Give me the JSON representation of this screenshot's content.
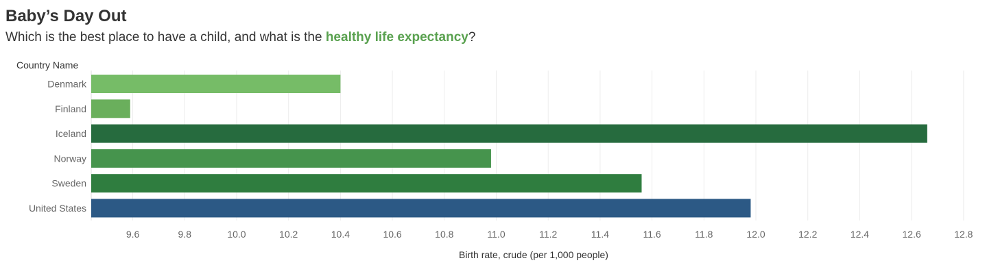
{
  "header": {
    "title": "Baby’s Day Out",
    "subtitle_prefix": "Which is the best place to have a child, and what is the ",
    "subtitle_highlight": "healthy life expectancy",
    "subtitle_suffix": "?"
  },
  "colors": {
    "highlight": "#59a14f",
    "gridline": "#ececec",
    "axis_text": "#666666"
  },
  "chart_data": {
    "type": "bar",
    "orientation": "horizontal",
    "row_header": "Country Name",
    "categories": [
      "Denmark",
      "Finland",
      "Iceland",
      "Norway",
      "Sweden",
      "United States"
    ],
    "values": [
      10.4,
      9.59,
      12.66,
      10.98,
      11.56,
      11.98
    ],
    "bar_colors": [
      "#76bc67",
      "#6aaf5c",
      "#266b3e",
      "#46944d",
      "#2f7d3f",
      "#2c5985"
    ],
    "xlabel": "Birth rate, crude (per 1,000 people)",
    "xlim": [
      9.44,
      12.84
    ],
    "ticks": [
      9.6,
      9.8,
      10.0,
      10.2,
      10.4,
      10.6,
      10.8,
      11.0,
      11.2,
      11.4,
      11.6,
      11.8,
      12.0,
      12.2,
      12.4,
      12.6,
      12.8
    ],
    "tick_labels": [
      "9.6",
      "9.8",
      "10.0",
      "10.2",
      "10.4",
      "10.6",
      "10.8",
      "11.0",
      "11.2",
      "11.4",
      "11.6",
      "11.8",
      "12.0",
      "12.2",
      "12.4",
      "12.6",
      "12.8"
    ],
    "grid": true,
    "legend": "none"
  }
}
